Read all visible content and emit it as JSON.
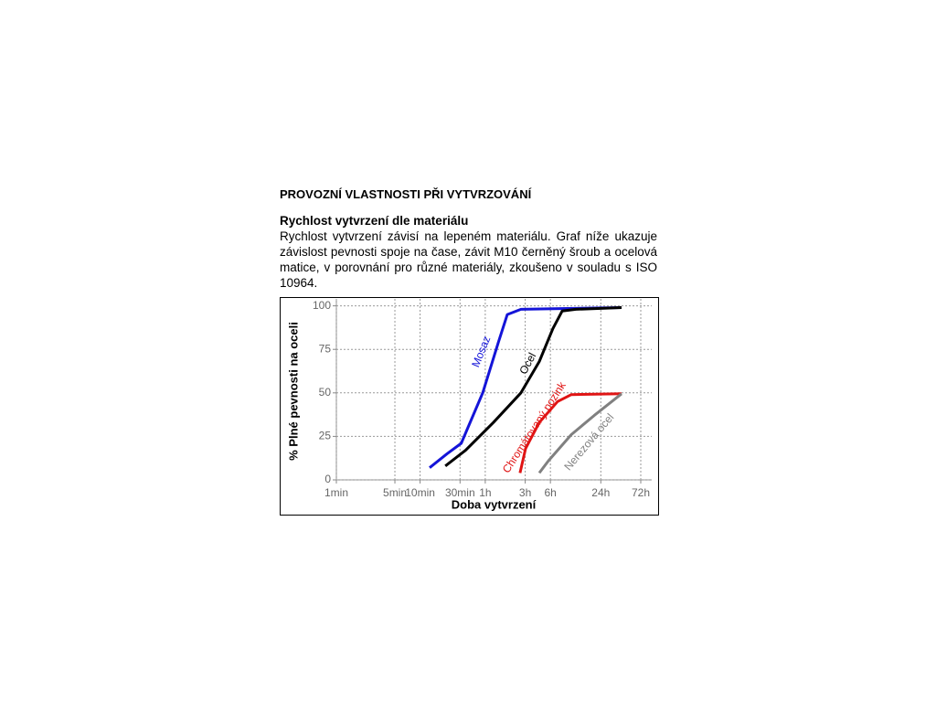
{
  "document": {
    "title": "PROVOZNÍ VLASTNOSTI PŘI VYTVRZOVÁNÍ",
    "subtitle": "Rychlost vytvrzení dle materiálu",
    "paragraph": "Rychlost vytvrzení závisí na lepeném materiálu. Graf níže ukazuje závislost pevnosti spoje na čase, závit M10 černěný šroub a ocelová matice, v porovnání pro různé materiály, zkoušeno v souladu s ISO 10964."
  },
  "chart_data": {
    "type": "line",
    "x_label": "Doba vytvrzení",
    "y_label": "% Plné pevnosti na oceli",
    "x_log": true,
    "grid": true,
    "xlim": [
      1,
      5840
    ],
    "ylim": [
      0,
      104
    ],
    "xticks": [
      {
        "value": 1,
        "label": "1min"
      },
      {
        "value": 5,
        "label": "5min"
      },
      {
        "value": 10,
        "label": "10min"
      },
      {
        "value": 30,
        "label": "30min"
      },
      {
        "value": 60,
        "label": "1h"
      },
      {
        "value": 180,
        "label": "3h"
      },
      {
        "value": 360,
        "label": "6h"
      },
      {
        "value": 1440,
        "label": "24h"
      },
      {
        "value": 4320,
        "label": "72h"
      }
    ],
    "yticks": [
      0,
      25,
      50,
      75,
      100
    ],
    "series": [
      {
        "name": "Mosaz",
        "color": "#1414d8",
        "x": [
          13,
          21,
          31,
          56,
          86,
          110,
          160,
          564,
          2550
        ],
        "values": [
          7,
          15,
          21,
          50,
          79,
          95,
          98,
          98.5,
          99
        ]
      },
      {
        "name": "Ocel",
        "color": "#000000",
        "x": [
          20,
          35,
          75,
          160,
          265,
          386,
          497,
          725,
          2550
        ],
        "values": [
          8,
          17,
          33,
          50,
          68,
          87,
          97,
          98,
          99
        ]
      },
      {
        "name": "Chromátovaný pozink",
        "color": "#e01414",
        "x": [
          156,
          182,
          265,
          438,
          640,
          2550
        ],
        "values": [
          4,
          18,
          33,
          45,
          49,
          49.5
        ]
      },
      {
        "name": "Nerezová ocel",
        "color": "#808080",
        "x": [
          265,
          341,
          640,
          1199,
          2550
        ],
        "values": [
          4,
          11,
          26,
          37,
          49.5
        ]
      }
    ]
  }
}
